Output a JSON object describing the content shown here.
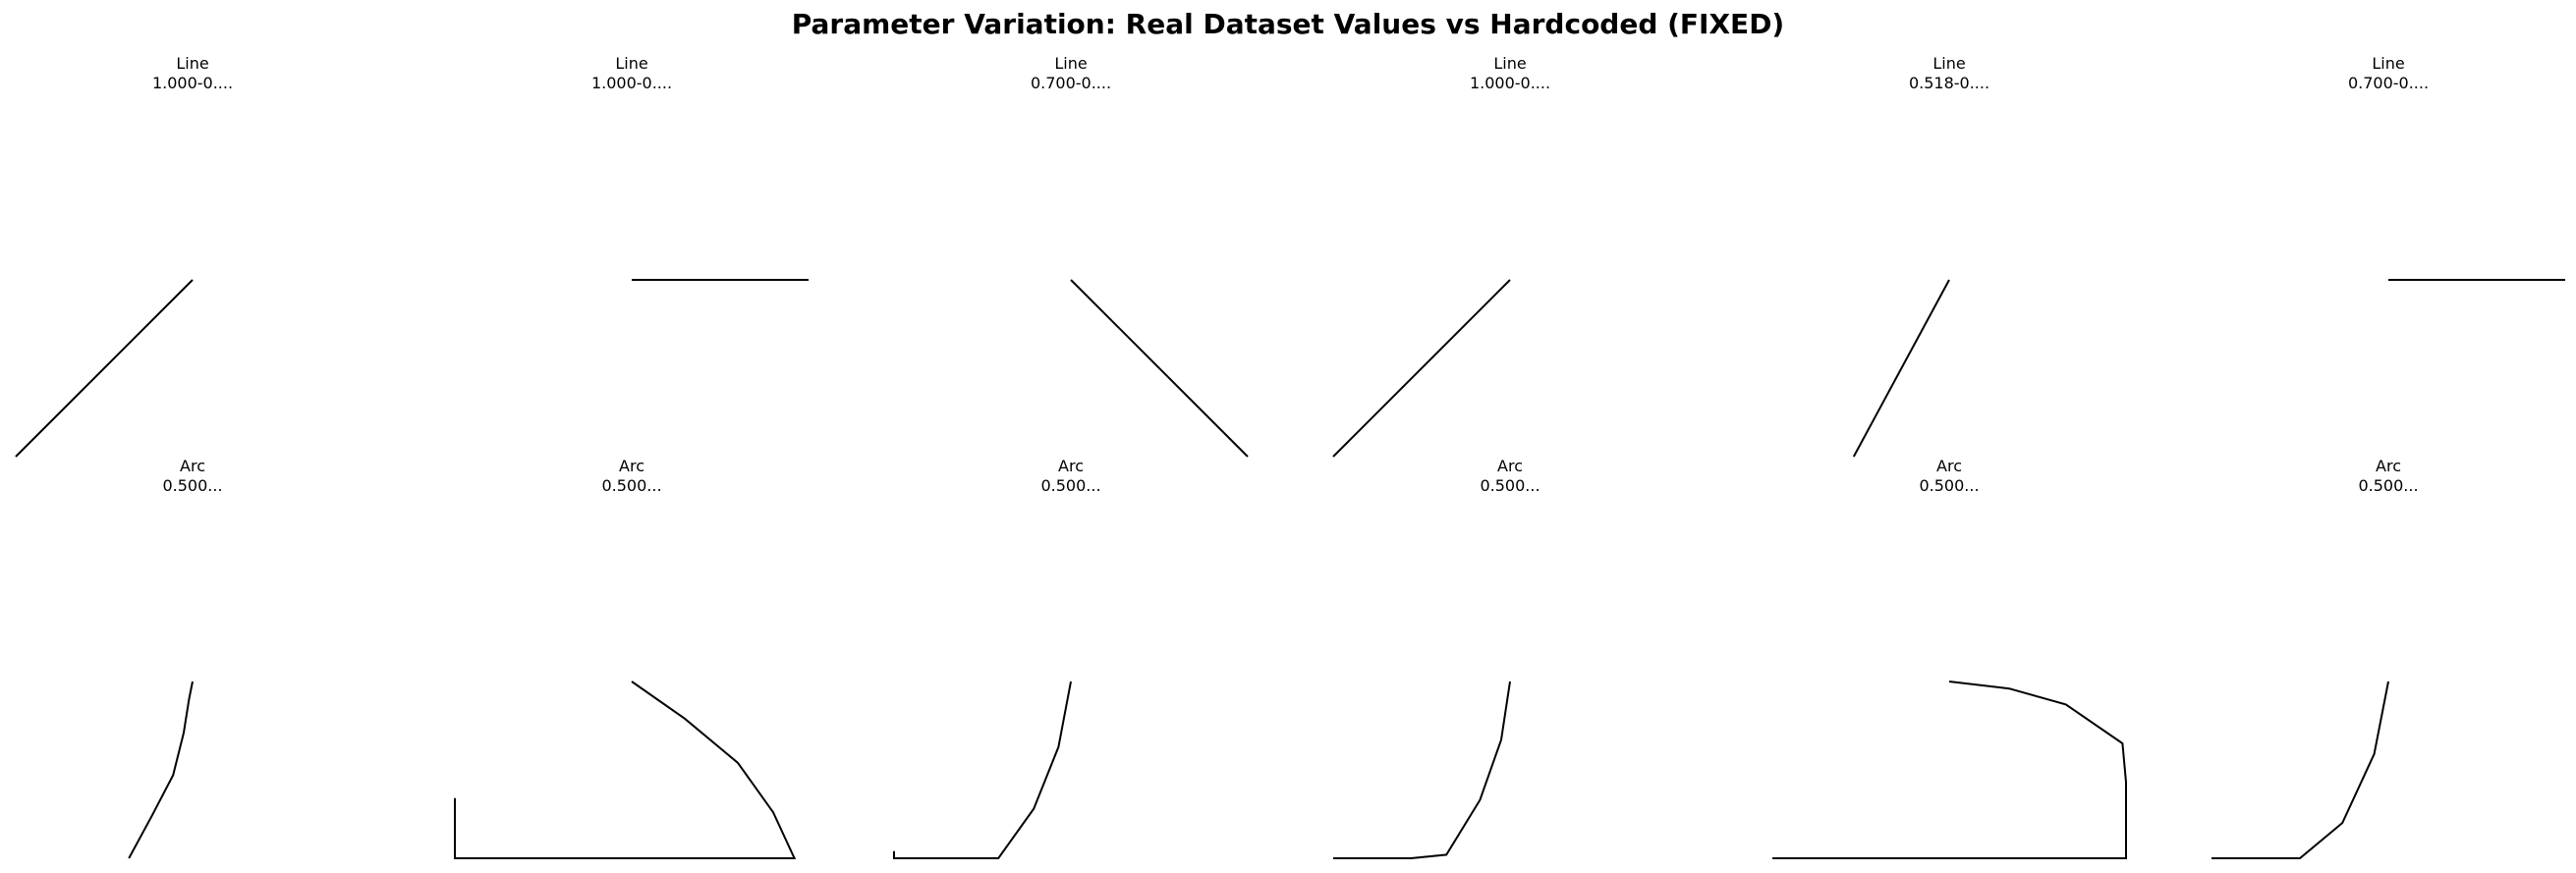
{
  "title": "Parameter Variation: Real Dataset Values vs Hardcoded (FIXED)",
  "style": {
    "stroke_color": "#000000",
    "background": "#ffffff",
    "axes_visible": false
  },
  "chart_data": [
    {
      "type": "line",
      "title": "Line",
      "subtitle": "1.000-0....",
      "x": [
        0.0,
        1.0
      ],
      "y": [
        0.0,
        1.0
      ]
    },
    {
      "type": "line",
      "title": "Line",
      "subtitle": "1.000-0....",
      "x": [
        0.0,
        1.0
      ],
      "y": [
        1.0,
        1.0
      ]
    },
    {
      "type": "line",
      "title": "Line",
      "subtitle": "0.700-0....",
      "x": [
        0.0,
        1.0
      ],
      "y": [
        1.0,
        0.0
      ]
    },
    {
      "type": "line",
      "title": "Line",
      "subtitle": "1.000-0....",
      "x": [
        0.0,
        1.0
      ],
      "y": [
        0.0,
        1.0
      ]
    },
    {
      "type": "line",
      "title": "Line",
      "subtitle": "0.518-0....",
      "x": [
        0.0,
        0.54
      ],
      "y": [
        0.0,
        1.0
      ]
    },
    {
      "type": "line",
      "title": "Line",
      "subtitle": "0.700-0....",
      "x": [
        0.0,
        1.0
      ],
      "y": [
        1.0,
        1.0
      ]
    },
    {
      "type": "line",
      "title": "Arc",
      "subtitle": "0.500...",
      "x": [
        0.0,
        0.13,
        0.25,
        0.31,
        0.34,
        0.36
      ],
      "y": [
        0.0,
        0.24,
        0.47,
        0.71,
        0.9,
        1.0
      ]
    },
    {
      "type": "line",
      "title": "Arc",
      "subtitle": "0.500...",
      "x": [
        -1.0,
        -1.0,
        0.82,
        0.92,
        0.8,
        0.6,
        0.3,
        0.0
      ],
      "y": [
        0.34,
        0.0,
        0.0,
        0.0,
        0.26,
        0.54,
        0.79,
        1.0
      ]
    },
    {
      "type": "line",
      "title": "Arc",
      "subtitle": "0.500...",
      "x": [
        0.0,
        0.0,
        0.59,
        0.79,
        0.93,
        1.0
      ],
      "y": [
        0.04,
        0.0,
        0.0,
        0.28,
        0.63,
        1.0
      ]
    },
    {
      "type": "line",
      "title": "Arc",
      "subtitle": "0.500...",
      "x": [
        0.0,
        0.44,
        0.64,
        0.83,
        0.95,
        1.0
      ],
      "y": [
        0.0,
        0.0,
        0.02,
        0.33,
        0.67,
        1.0
      ]
    },
    {
      "type": "line",
      "title": "Arc",
      "subtitle": "0.500...",
      "x": [
        0.0,
        2.0,
        2.0,
        1.98,
        1.66,
        1.34,
        1.0
      ],
      "y": [
        0.0,
        0.0,
        0.43,
        0.65,
        0.87,
        0.96,
        1.0
      ]
    },
    {
      "type": "line",
      "title": "Arc",
      "subtitle": "0.500...",
      "x": [
        0.0,
        0.5,
        0.74,
        0.92,
        1.0
      ],
      "y": [
        0.0,
        0.0,
        0.2,
        0.59,
        1.0
      ]
    }
  ]
}
